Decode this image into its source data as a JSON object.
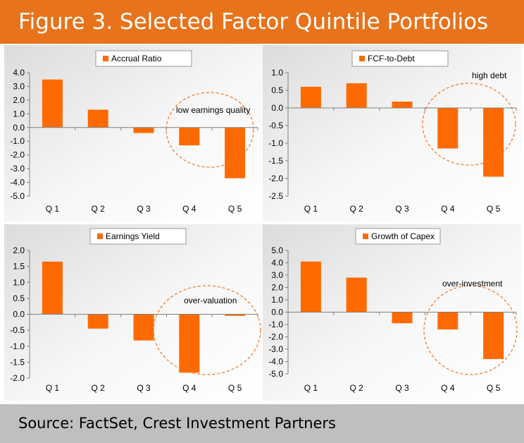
{
  "page": {
    "title": "Figure 3. Selected Factor Quintile Portfolios",
    "source": "Source: FactSet, Crest Investment Partners"
  },
  "colors": {
    "banner": "#e8731a",
    "bar": "#ff6a00",
    "source_bar": "#bfbfbf",
    "annotation_circle": "#f07c2a"
  },
  "chart_data": [
    {
      "type": "bar",
      "legend": "Accrual Ratio",
      "legend_position": "top-center",
      "categories": [
        "Q 1",
        "Q 2",
        "Q 3",
        "Q 4",
        "Q 5"
      ],
      "values": [
        3.5,
        1.3,
        -0.4,
        -1.3,
        -3.7
      ],
      "ylim": [
        -5.0,
        4.0
      ],
      "yticks": [
        "4.0",
        "3.0",
        "2.0",
        "1.0",
        "0.0",
        "-1.0",
        "-2.0",
        "-3.0",
        "-4.0",
        "-5.0"
      ],
      "annotation": "low earnings quality",
      "grid": false
    },
    {
      "type": "bar",
      "legend": "FCF-to-Debt",
      "legend_position": "top-right",
      "categories": [
        "Q 1",
        "Q 2",
        "Q 3",
        "Q 4",
        "Q 5"
      ],
      "values": [
        0.6,
        0.7,
        0.18,
        -1.15,
        -1.95
      ],
      "ylim": [
        -2.5,
        1.0
      ],
      "yticks": [
        "1.0",
        "0.5",
        "0.0",
        "-0.5",
        "-1.0",
        "-1.5",
        "-2.0",
        "-2.5"
      ],
      "annotation": "high debt",
      "grid": false
    },
    {
      "type": "bar",
      "legend": "Earnings Yield",
      "legend_position": "top-center",
      "categories": [
        "Q 1",
        "Q 2",
        "Q 3",
        "Q 4",
        "Q 5"
      ],
      "values": [
        1.65,
        -0.45,
        -0.82,
        -1.83,
        -0.05
      ],
      "ylim": [
        -2.0,
        2.0
      ],
      "yticks": [
        "2.0",
        "1.5",
        "1.0",
        "0.5",
        "0.0",
        "-0.5",
        "-1.0",
        "-1.5",
        "-2.0"
      ],
      "annotation": "over-valuation",
      "grid": false
    },
    {
      "type": "bar",
      "legend": "Growth of Capex",
      "legend_position": "top-center",
      "categories": [
        "Q 1",
        "Q 2",
        "Q 3",
        "Q 4",
        "Q 5"
      ],
      "values": [
        4.1,
        2.8,
        -0.9,
        -1.4,
        -3.8
      ],
      "ylim": [
        -5.0,
        5.0
      ],
      "yticks": [
        "5.0",
        "4.0",
        "3.0",
        "2.0",
        "1.0",
        "0.0",
        "-1.0",
        "-2.0",
        "-3.0",
        "-4.0",
        "-5.0"
      ],
      "annotation": "over-investment",
      "grid": false
    }
  ]
}
